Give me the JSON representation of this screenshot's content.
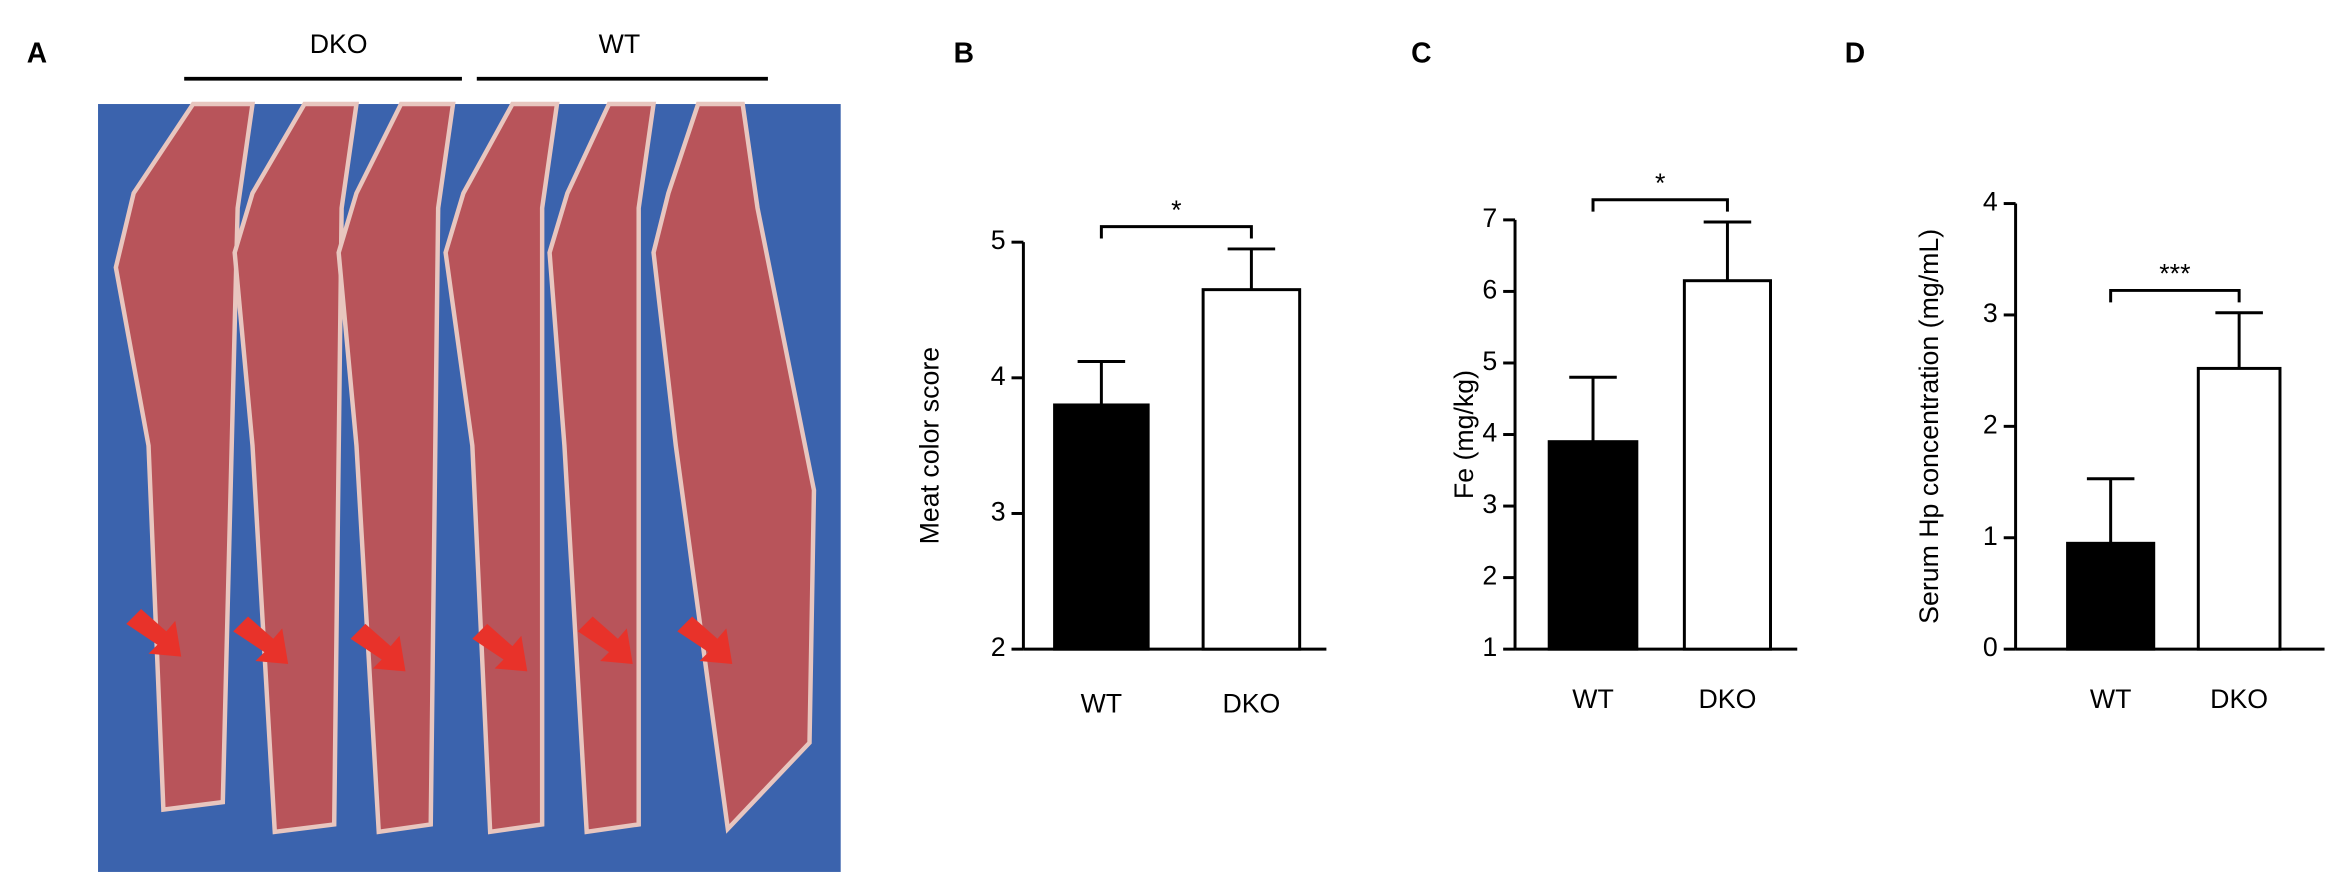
{
  "panel_a": {
    "label": "A",
    "groups": [
      "DKO",
      "WT"
    ]
  },
  "chart_data": [
    {
      "type": "bar",
      "panel_label": "B",
      "ylabel": "Meat color score",
      "categories": [
        "WT",
        "DKO"
      ],
      "values": [
        3.8,
        4.65
      ],
      "errors": [
        0.32,
        0.3
      ],
      "colors": [
        "#000000",
        "#ffffff"
      ],
      "ylim": [
        2,
        5
      ],
      "yticks": [
        2,
        3,
        4,
        5
      ],
      "annotation": "*"
    },
    {
      "type": "bar",
      "panel_label": "C",
      "ylabel": "Fe (mg/kg)",
      "categories": [
        "WT",
        "DKO"
      ],
      "values": [
        3.9,
        6.15
      ],
      "errors": [
        0.9,
        0.82
      ],
      "colors": [
        "#000000",
        "#ffffff"
      ],
      "ylim": [
        1,
        7
      ],
      "yticks": [
        1,
        2,
        3,
        4,
        5,
        6,
        7
      ],
      "annotation": "*"
    },
    {
      "type": "bar",
      "panel_label": "D",
      "ylabel": "Serum Hp concentration (mg/mL)",
      "categories": [
        "WT",
        "DKO"
      ],
      "values": [
        0.95,
        2.52
      ],
      "errors": [
        0.58,
        0.5
      ],
      "colors": [
        "#000000",
        "#ffffff"
      ],
      "ylim": [
        0,
        4
      ],
      "yticks": [
        0,
        1,
        2,
        3,
        4
      ],
      "annotation": "***"
    }
  ]
}
